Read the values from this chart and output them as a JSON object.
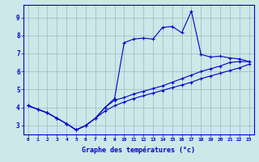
{
  "xlabel": "Graphe des températures (°c)",
  "background_color": "#cce8e8",
  "line_color": "#0000cc",
  "grid_color": "#99bbbb",
  "xlim": [
    -0.5,
    23.5
  ],
  "ylim": [
    2.5,
    9.7
  ],
  "xticks": [
    0,
    1,
    2,
    3,
    4,
    5,
    6,
    7,
    8,
    9,
    10,
    11,
    12,
    13,
    14,
    15,
    16,
    17,
    18,
    19,
    20,
    21,
    22,
    23
  ],
  "yticks": [
    3,
    4,
    5,
    6,
    7,
    8,
    9
  ],
  "curve1_x": [
    0,
    1,
    2,
    3,
    4,
    5,
    6,
    7,
    8,
    9,
    10,
    11,
    12,
    13,
    14,
    15,
    16,
    17,
    18,
    19,
    20,
    21,
    22,
    23
  ],
  "curve1_y": [
    4.1,
    3.9,
    3.7,
    3.4,
    3.1,
    2.75,
    3.0,
    3.4,
    3.8,
    4.1,
    4.3,
    4.5,
    4.65,
    4.8,
    4.95,
    5.1,
    5.25,
    5.4,
    5.6,
    5.75,
    5.9,
    6.05,
    6.2,
    6.4
  ],
  "curve2_x": [
    0,
    1,
    2,
    3,
    4,
    5,
    6,
    7,
    8,
    9,
    10,
    11,
    12,
    13,
    14,
    15,
    16,
    17,
    18,
    19,
    20,
    21,
    22,
    23
  ],
  "curve2_y": [
    4.1,
    3.9,
    3.7,
    3.4,
    3.1,
    2.75,
    3.0,
    3.4,
    4.0,
    4.4,
    4.55,
    4.75,
    4.9,
    5.05,
    5.2,
    5.4,
    5.6,
    5.8,
    6.0,
    6.15,
    6.3,
    6.5,
    6.55,
    6.55
  ],
  "curve3_x": [
    0,
    1,
    2,
    3,
    4,
    5,
    6,
    7,
    8,
    9,
    10,
    11,
    12,
    13,
    14,
    15,
    16,
    17,
    18,
    19,
    20,
    21,
    22,
    23
  ],
  "curve3_y": [
    4.1,
    3.9,
    3.7,
    3.4,
    3.1,
    2.75,
    3.0,
    3.4,
    4.0,
    4.5,
    7.6,
    7.8,
    7.85,
    7.8,
    8.45,
    8.5,
    8.15,
    9.35,
    6.95,
    6.8,
    6.85,
    6.75,
    6.7,
    6.55
  ]
}
